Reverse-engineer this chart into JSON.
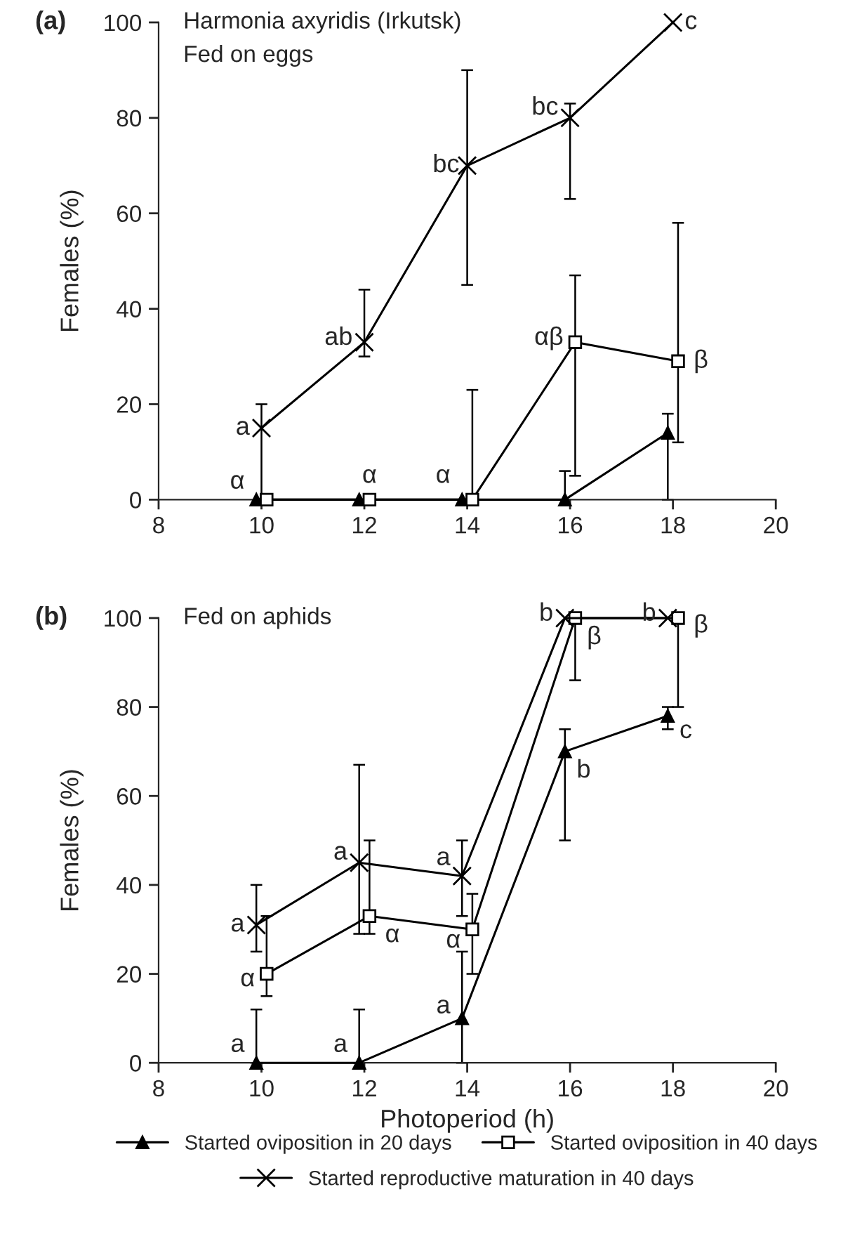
{
  "chart_data": [
    {
      "type": "line",
      "title": "(a)",
      "subtitle": "Harmonia axyridis (Irkutsk)",
      "ylabel": "Females (%)",
      "xlim": [
        8,
        20
      ],
      "xticks": [
        8,
        10,
        12,
        14,
        16,
        18,
        20
      ],
      "ylim": [
        0,
        100
      ],
      "yticks": [
        0,
        20,
        40,
        60,
        80,
        100
      ],
      "grid": false,
      "series": [
        {
          "color": "#000000",
          "marker": "triangle",
          "x": [
            9.9,
            11.9,
            13.9,
            15.9,
            17.9
          ],
          "values": [
            0,
            0,
            0,
            0,
            14
          ],
          "errors": [
            null,
            null,
            null,
            [
              0,
              6
            ],
            [
              0,
              18
            ]
          ]
        },
        {
          "color": "#000000",
          "marker": "square",
          "x": [
            10.1,
            12.1,
            14.1,
            16.1,
            18.1
          ],
          "values": [
            0,
            0,
            0,
            33,
            29
          ],
          "errors": [
            null,
            null,
            [
              0,
              23
            ],
            [
              5,
              47
            ],
            [
              12,
              58
            ]
          ]
        },
        {
          "color": "#000000",
          "marker": "cross",
          "x": [
            10,
            12,
            14,
            16,
            18
          ],
          "values": [
            15,
            33,
            70,
            80,
            100
          ],
          "errors": [
            [
              0,
              20
            ],
            [
              30,
              44
            ],
            [
              45,
              90
            ],
            [
              63,
              83
            ],
            null
          ]
        }
      ],
      "annotations": [
        "Fed on eggs",
        {
          "text": "a",
          "x": 10,
          "y": 15
        },
        {
          "text": "ab",
          "x": 12,
          "y": 33
        },
        {
          "text": "bc",
          "x": 14,
          "y": 70
        },
        {
          "text": "bc",
          "x": 16,
          "y": 80
        },
        {
          "text": "c",
          "x": 18,
          "y": 100
        },
        {
          "text": "αβ",
          "x": 16.1,
          "y": 33
        },
        {
          "text": "β",
          "x": 18.1,
          "y": 29
        },
        {
          "text": "α",
          "x": 9.9,
          "y": 0
        },
        {
          "text": "α",
          "x": 12.1,
          "y": 0
        },
        {
          "text": "α",
          "x": 13.9,
          "y": 0
        }
      ]
    },
    {
      "type": "line",
      "title": "(b)",
      "subtitle": "Fed on aphids",
      "xlabel": "Photoperiod (h)",
      "ylabel": "Females (%)",
      "xlim": [
        8,
        20
      ],
      "xticks": [
        8,
        10,
        12,
        14,
        16,
        18,
        20
      ],
      "ylim": [
        0,
        100
      ],
      "yticks": [
        0,
        20,
        40,
        60,
        80,
        100
      ],
      "grid": false,
      "legend": "bottom",
      "series": [
        {
          "name": "Started oviposition in 20 days",
          "color": "#000000",
          "marker": "triangle",
          "x": [
            9.9,
            11.9,
            13.9,
            15.9,
            17.9
          ],
          "values": [
            0,
            0,
            10,
            70,
            78
          ],
          "errors": [
            [
              0,
              12
            ],
            [
              0,
              12
            ],
            [
              0,
              25
            ],
            [
              50,
              75
            ],
            [
              75,
              80
            ]
          ]
        },
        {
          "name": "Started oviposition in 40 days",
          "color": "#000000",
          "marker": "square",
          "x": [
            10.1,
            12.1,
            14.1,
            16.1,
            18.1
          ],
          "values": [
            20,
            33,
            30,
            100,
            100
          ],
          "errors": [
            [
              15,
              33
            ],
            [
              29,
              50
            ],
            [
              20,
              38
            ],
            [
              86,
              100
            ],
            [
              80,
              100
            ]
          ]
        },
        {
          "name": "Started reproductive maturation in 40 days",
          "color": "#000000",
          "marker": "cross",
          "x": [
            9.9,
            11.9,
            13.9,
            15.9,
            17.9
          ],
          "values": [
            31,
            45,
            42,
            100,
            100
          ],
          "errors": [
            [
              25,
              40
            ],
            [
              29,
              67
            ],
            [
              33,
              50
            ],
            null,
            null
          ]
        }
      ],
      "annotations": [
        {
          "text": "a",
          "x": 9.9,
          "y": 31
        },
        {
          "text": "a",
          "x": 11.9,
          "y": 45
        },
        {
          "text": "a",
          "x": 13.9,
          "y": 42
        },
        {
          "text": "b",
          "x": 15.9,
          "y": 100
        },
        {
          "text": "b",
          "x": 17.9,
          "y": 100
        },
        {
          "text": "α",
          "x": 10.1,
          "y": 20
        },
        {
          "text": "α",
          "x": 12.1,
          "y": 33
        },
        {
          "text": "α",
          "x": 14.1,
          "y": 30
        },
        {
          "text": "β",
          "x": 16.1,
          "y": 100
        },
        {
          "text": "β",
          "x": 18.1,
          "y": 100
        },
        {
          "text": "a",
          "x": 9.9,
          "y": 0
        },
        {
          "text": "a",
          "x": 11.9,
          "y": 0
        },
        {
          "text": "a",
          "x": 13.9,
          "y": 10
        },
        {
          "text": "b",
          "x": 15.9,
          "y": 70
        },
        {
          "text": "c",
          "x": 17.9,
          "y": 78
        }
      ]
    }
  ]
}
